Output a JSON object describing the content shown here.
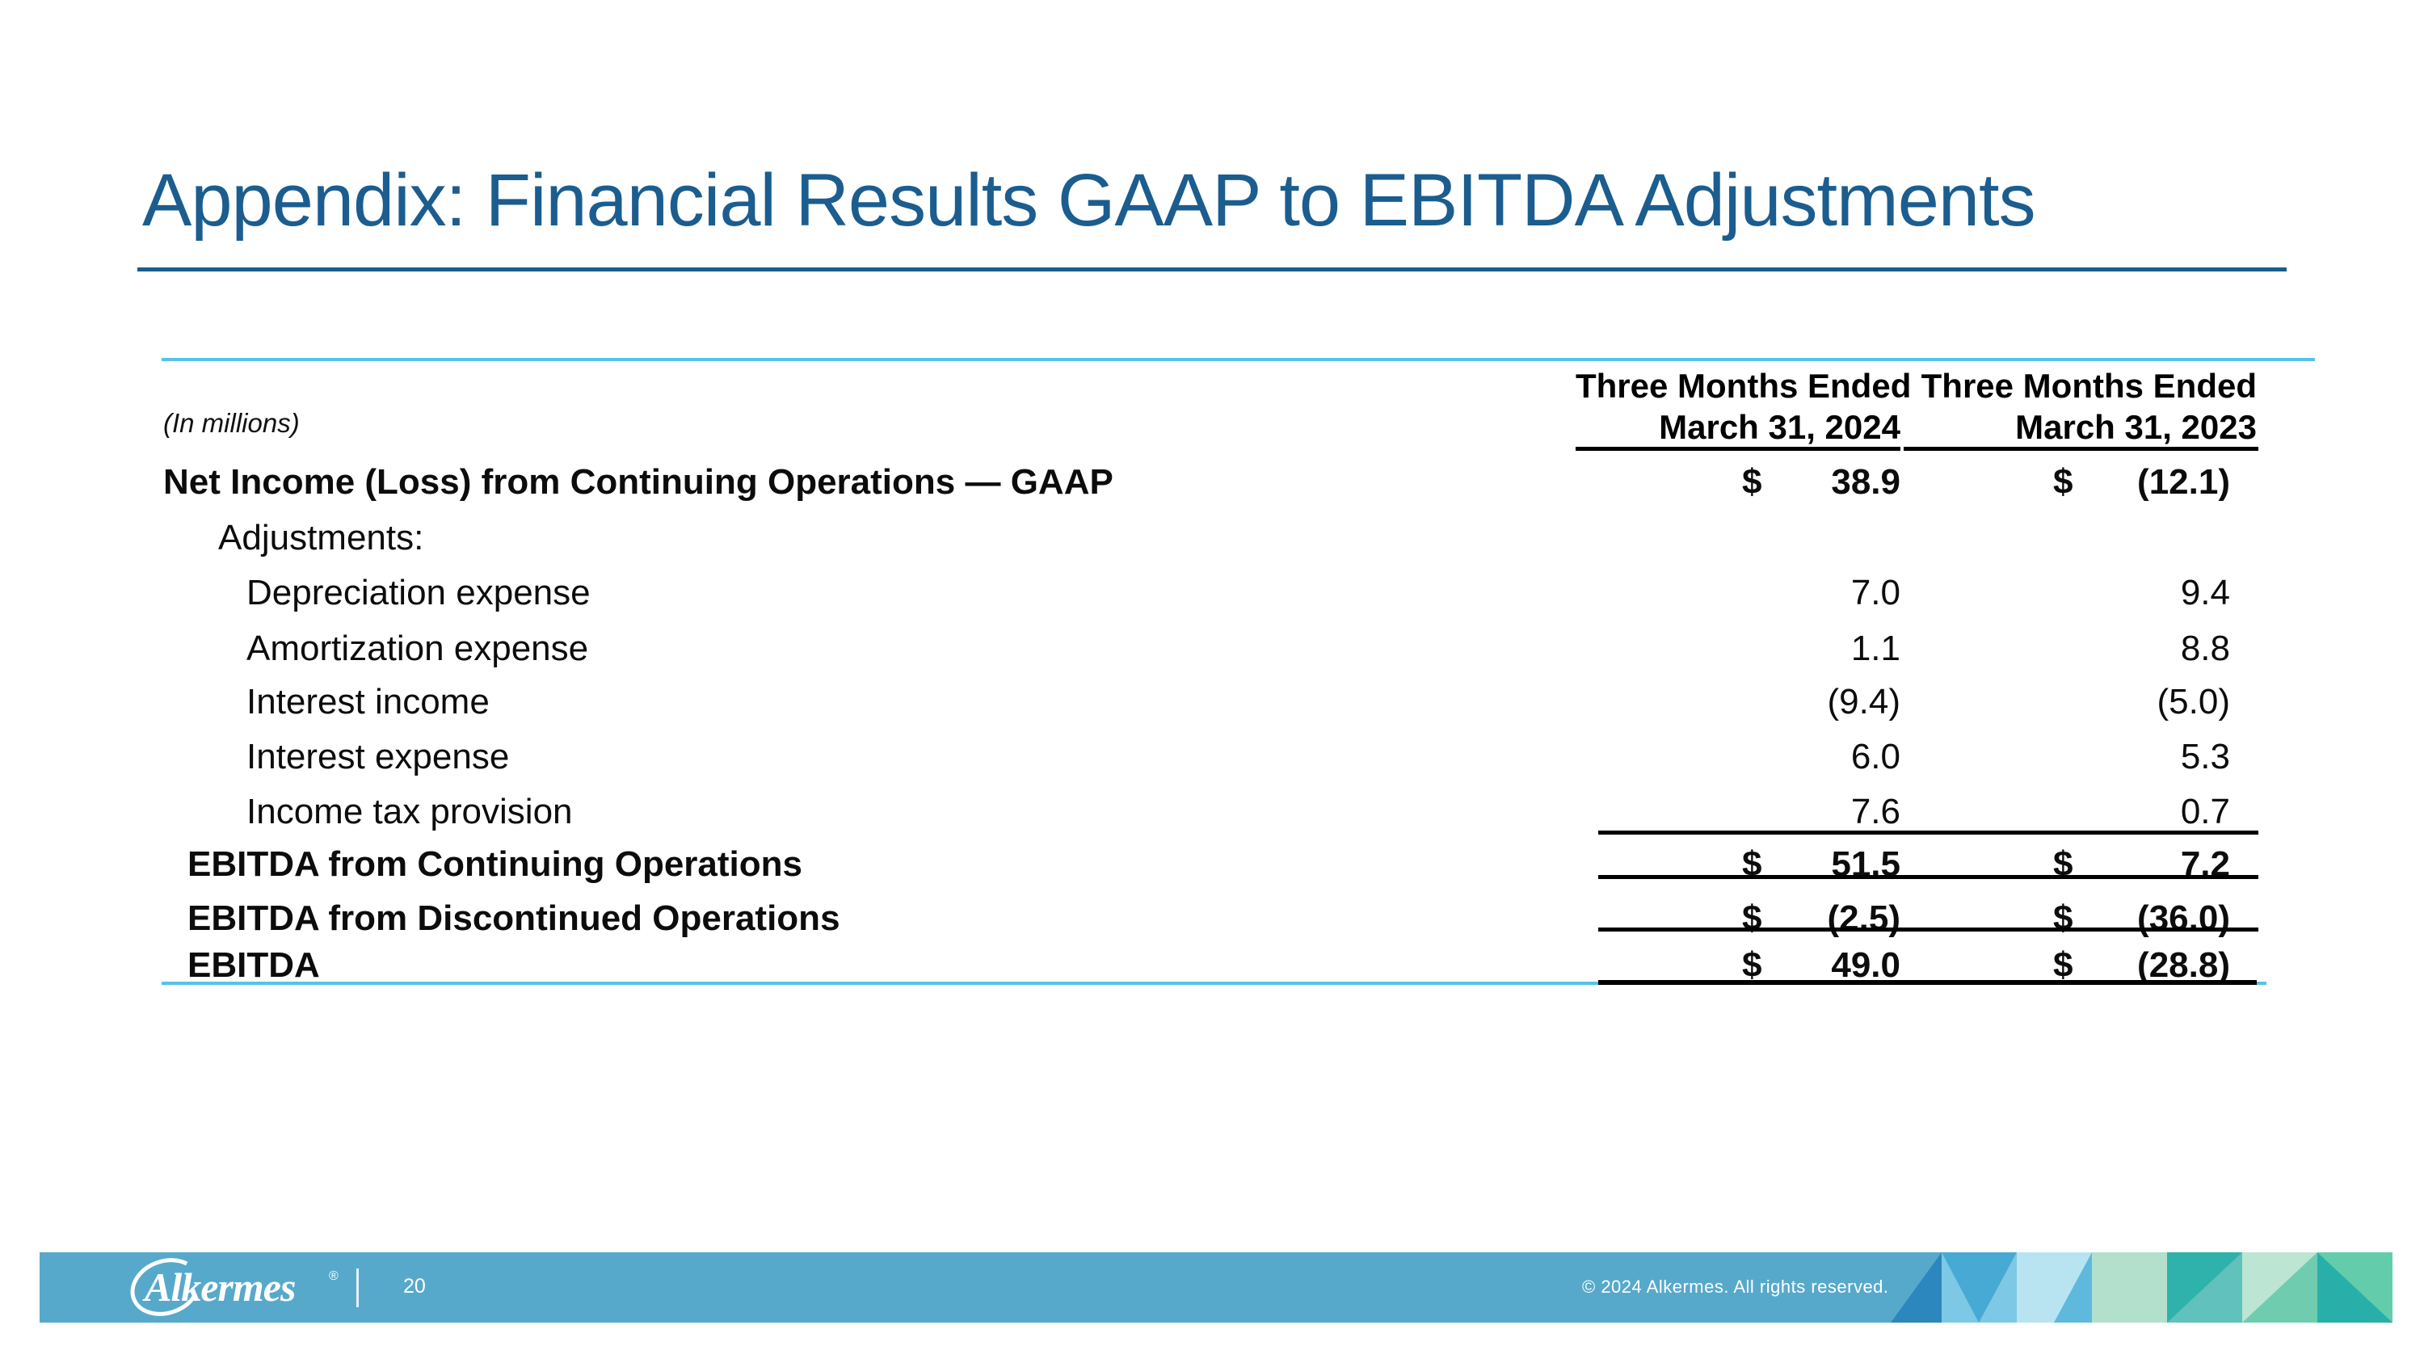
{
  "slide": {
    "title": "Appendix: Financial Results GAAP to EBITDA Adjustments",
    "page_number": "20",
    "copyright": "© 2024 Alkermes. All rights reserved.",
    "logo_text": "Alkermes",
    "logo_reg_mark": "®"
  },
  "colors": {
    "accent_blue": "#1b5d8f",
    "light_blue_rule": "#56c2e8",
    "footer_bar": "#57a9cb"
  },
  "table": {
    "units_note": "(In millions)",
    "currency_symbol": "$",
    "col_headers": [
      {
        "line1": "Three Months Ended",
        "line2": "March 31, 2024"
      },
      {
        "line1": "Three Months Ended",
        "line2": "March 31, 2023"
      }
    ],
    "rows": [
      {
        "label": "Net Income (Loss) from Continuing Operations — GAAP",
        "level": 0,
        "bold": true,
        "dollar": true,
        "v2024": "38.9",
        "v2023": "(12.1)"
      },
      {
        "label": "Adjustments:",
        "level": 2,
        "bold": false,
        "dollar": false,
        "v2024": "",
        "v2023": ""
      },
      {
        "label": "Depreciation expense",
        "level": 3,
        "bold": false,
        "dollar": false,
        "v2024": "7.0",
        "v2023": "9.4"
      },
      {
        "label": "Amortization expense",
        "level": 3,
        "bold": false,
        "dollar": false,
        "v2024": "1.1",
        "v2023": "8.8"
      },
      {
        "label": "Interest income",
        "level": 3,
        "bold": false,
        "dollar": false,
        "v2024": "(9.4)",
        "v2023": "(5.0)"
      },
      {
        "label": "Interest expense",
        "level": 3,
        "bold": false,
        "dollar": false,
        "v2024": "6.0",
        "v2023": "5.3"
      },
      {
        "label": "Income tax provision",
        "level": 3,
        "bold": false,
        "dollar": false,
        "v2024": "7.6",
        "v2023": "0.7"
      },
      {
        "label": "EBITDA from Continuing Operations",
        "level": 1,
        "bold": true,
        "dollar": true,
        "v2024": "51.5",
        "v2023": "7.2"
      },
      {
        "label": "EBITDA from Discontinued Operations",
        "level": 1,
        "bold": true,
        "dollar": true,
        "v2024": "(2.5)",
        "v2023": "(36.0)"
      },
      {
        "label": "EBITDA",
        "level": 1,
        "bold": true,
        "dollar": true,
        "v2024": "49.0",
        "v2023": "(28.8)"
      }
    ]
  },
  "footer": {
    "triangles": [
      {
        "bg": null,
        "tri": "#2b87bd",
        "shape": "tile1"
      },
      {
        "bg": "#7dc8e4",
        "tri": "#47aad5",
        "shape": "down"
      },
      {
        "bg": "#b8e4f2",
        "tri": "#5fb9dc",
        "shape": "cornerBR"
      },
      {
        "bg": "#b2e0cc",
        "tri": null,
        "shape": "none"
      },
      {
        "bg": "#2eb2ab",
        "tri": "#60c1bd",
        "shape": "diagBR"
      },
      {
        "bg": "#bce5d3",
        "tri": "#70ccae",
        "shape": "diagBR"
      },
      {
        "bg": "#63ccab",
        "tri": "#28afa9",
        "shape": "diagBL"
      }
    ]
  }
}
